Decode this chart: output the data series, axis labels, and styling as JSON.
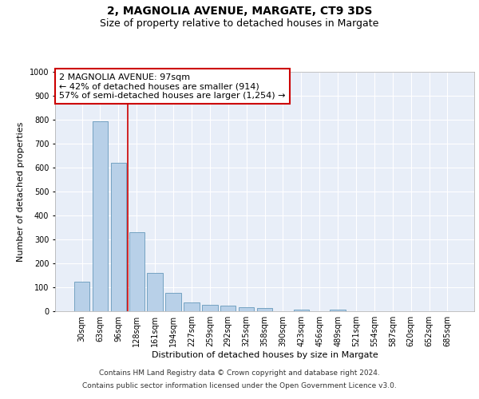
{
  "title": "2, MAGNOLIA AVENUE, MARGATE, CT9 3DS",
  "subtitle": "Size of property relative to detached houses in Margate",
  "xlabel": "Distribution of detached houses by size in Margate",
  "ylabel": "Number of detached properties",
  "categories": [
    "30sqm",
    "63sqm",
    "96sqm",
    "128sqm",
    "161sqm",
    "194sqm",
    "227sqm",
    "259sqm",
    "292sqm",
    "325sqm",
    "358sqm",
    "390sqm",
    "423sqm",
    "456sqm",
    "489sqm",
    "521sqm",
    "554sqm",
    "587sqm",
    "620sqm",
    "652sqm",
    "685sqm"
  ],
  "values": [
    122,
    795,
    620,
    330,
    160,
    78,
    37,
    27,
    25,
    18,
    15,
    0,
    8,
    0,
    8,
    0,
    0,
    0,
    0,
    0,
    0
  ],
  "bar_color": "#b8d0e8",
  "bar_edge_color": "#6699bb",
  "vline_color": "#cc0000",
  "annotation_text": "2 MAGNOLIA AVENUE: 97sqm\n← 42% of detached houses are smaller (914)\n57% of semi-detached houses are larger (1,254) →",
  "annotation_box_color": "#ffffff",
  "annotation_box_edge_color": "#cc0000",
  "ylim": [
    0,
    1000
  ],
  "yticks": [
    0,
    100,
    200,
    300,
    400,
    500,
    600,
    700,
    800,
    900,
    1000
  ],
  "background_color": "#e8eef8",
  "grid_color": "#ffffff",
  "footer_line1": "Contains HM Land Registry data © Crown copyright and database right 2024.",
  "footer_line2": "Contains public sector information licensed under the Open Government Licence v3.0.",
  "title_fontsize": 10,
  "subtitle_fontsize": 9,
  "xlabel_fontsize": 8,
  "ylabel_fontsize": 8,
  "tick_fontsize": 7,
  "annotation_fontsize": 8,
  "footer_fontsize": 6.5
}
